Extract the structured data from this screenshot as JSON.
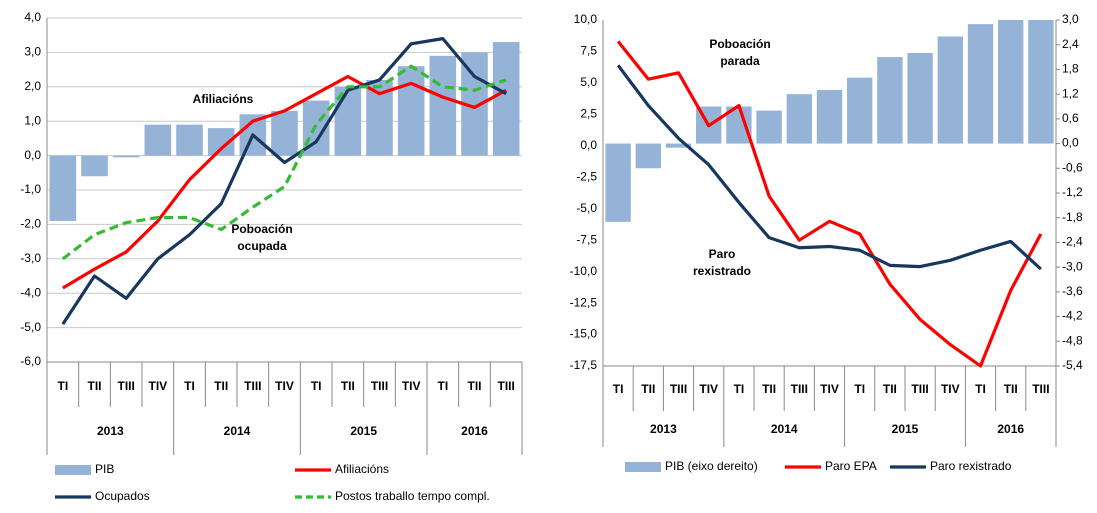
{
  "chart_data": [
    {
      "type": "combo",
      "categories": [
        "TI",
        "TII",
        "TIII",
        "TIV",
        "TI",
        "TII",
        "TIII",
        "TIV",
        "TI",
        "TII",
        "TIII",
        "TIV",
        "TI",
        "TII",
        "TIII"
      ],
      "groups": [
        "2013",
        "2014",
        "2015",
        "2016"
      ],
      "ylim": [
        -6,
        4
      ],
      "yticks": [
        {
          "value": -6,
          "label": "-6,0"
        },
        {
          "value": -5,
          "label": "-5,0"
        },
        {
          "value": -4,
          "label": "-4,0"
        },
        {
          "value": -3,
          "label": "-3,0"
        },
        {
          "value": -2,
          "label": "-2,0"
        },
        {
          "value": -1,
          "label": "-1,0"
        },
        {
          "value": 0,
          "label": "0,0"
        },
        {
          "value": 1,
          "label": "1,0"
        },
        {
          "value": 2,
          "label": "2,0"
        },
        {
          "value": 3,
          "label": "3,0"
        },
        {
          "value": 4,
          "label": "4,0"
        }
      ],
      "grid": true,
      "series": [
        {
          "name": "PIB",
          "type": "bar",
          "color": "#95b3d7",
          "values": [
            -1.9,
            -0.6,
            -0.05,
            0.9,
            0.9,
            0.8,
            1.2,
            1.3,
            1.6,
            2.0,
            2.2,
            2.6,
            2.9,
            3.0,
            3.3
          ]
        },
        {
          "name": "Afiliacións",
          "type": "line",
          "color": "#ff0000",
          "values": [
            -3.85,
            -3.3,
            -2.8,
            -1.9,
            -0.7,
            0.2,
            1.0,
            1.3,
            1.8,
            2.3,
            1.8,
            2.1,
            1.7,
            1.4,
            1.9
          ]
        },
        {
          "name": "Ocupados",
          "type": "line",
          "color": "#17375e",
          "values": [
            -4.9,
            -3.5,
            -4.15,
            -3.0,
            -2.3,
            -1.4,
            0.6,
            -0.2,
            0.4,
            1.9,
            2.2,
            3.25,
            3.4,
            2.3,
            1.8
          ]
        },
        {
          "name": "Postos traballo tempo compl.",
          "type": "line",
          "dashed": true,
          "color": "#33bb33",
          "values": [
            -3.0,
            -2.3,
            -1.95,
            -1.8,
            -1.8,
            -2.15,
            -1.5,
            -0.9,
            0.9,
            2.0,
            2.0,
            2.6,
            2.0,
            1.9,
            2.2
          ]
        }
      ],
      "annotations": [
        [
          "Afiliacións"
        ],
        [
          "Poboación",
          "ocupada"
        ]
      ]
    },
    {
      "type": "combo",
      "categories": [
        "TI",
        "TII",
        "TIII",
        "TIV",
        "TI",
        "TII",
        "TIII",
        "TIV",
        "TI",
        "TII",
        "TIII",
        "TIV",
        "TI",
        "TII",
        "TIII"
      ],
      "groups": [
        "2013",
        "2014",
        "2015",
        "2016"
      ],
      "ylim": [
        -17.5,
        10
      ],
      "yticks": [
        {
          "value": -17.5,
          "label": "-17,5"
        },
        {
          "value": -15,
          "label": "-15,0"
        },
        {
          "value": -12.5,
          "label": "-12,5"
        },
        {
          "value": -10,
          "label": "-10,0"
        },
        {
          "value": -7.5,
          "label": "-7,5"
        },
        {
          "value": -5,
          "label": "-5,0"
        },
        {
          "value": -2.5,
          "label": "-2,5"
        },
        {
          "value": 0,
          "label": "0,0"
        },
        {
          "value": 2.5,
          "label": "2,5"
        },
        {
          "value": 5,
          "label": "5,0"
        },
        {
          "value": 7.5,
          "label": "7,5"
        },
        {
          "value": 10,
          "label": "10,0"
        }
      ],
      "y2lim": [
        -5.4,
        3.0
      ],
      "y2ticks": [
        {
          "value": -5.4,
          "label": "-5,4"
        },
        {
          "value": -4.8,
          "label": "-4,8"
        },
        {
          "value": -4.2,
          "label": "-4,2"
        },
        {
          "value": -3.6,
          "label": "-3,6"
        },
        {
          "value": -3.0,
          "label": "-3,0"
        },
        {
          "value": -2.4,
          "label": "-2,4"
        },
        {
          "value": -1.8,
          "label": "-1,8"
        },
        {
          "value": -1.2,
          "label": "-1,2"
        },
        {
          "value": -0.6,
          "label": "-0,6"
        },
        {
          "value": 0,
          "label": "0,0"
        },
        {
          "value": 0.6,
          "label": "0,6"
        },
        {
          "value": 1.2,
          "label": "1,2"
        },
        {
          "value": 1.8,
          "label": "1,8"
        },
        {
          "value": 2.4,
          "label": "2,4"
        },
        {
          "value": 3.0,
          "label": "3,0"
        }
      ],
      "grid": false,
      "series": [
        {
          "name": "PIB (eixo dereito)",
          "type": "bar",
          "axis": "y2",
          "color": "#95b3d7",
          "values": [
            -1.9,
            -0.6,
            -0.1,
            0.9,
            0.9,
            0.8,
            1.2,
            1.3,
            1.6,
            2.1,
            2.2,
            2.6,
            2.9,
            3.0,
            3.0
          ]
        },
        {
          "name": "Paro EPA",
          "type": "line",
          "color": "#ff0000",
          "values": [
            8.3,
            5.3,
            5.8,
            1.6,
            3.2,
            -4.0,
            -7.5,
            -6.0,
            -7.0,
            -11.0,
            -13.8,
            -15.8,
            -17.5,
            -11.5,
            -7.0
          ]
        },
        {
          "name": "Paro rexistrado",
          "type": "line",
          "color": "#17375e",
          "values": [
            6.4,
            3.2,
            0.6,
            -1.5,
            -4.5,
            -7.3,
            -8.1,
            -8.0,
            -8.3,
            -9.5,
            -9.6,
            -9.1,
            -8.3,
            -7.6,
            -9.8
          ]
        }
      ],
      "annotations": [
        [
          "Poboación",
          "parada"
        ],
        [
          "Paro",
          "rexistrado"
        ]
      ]
    }
  ]
}
